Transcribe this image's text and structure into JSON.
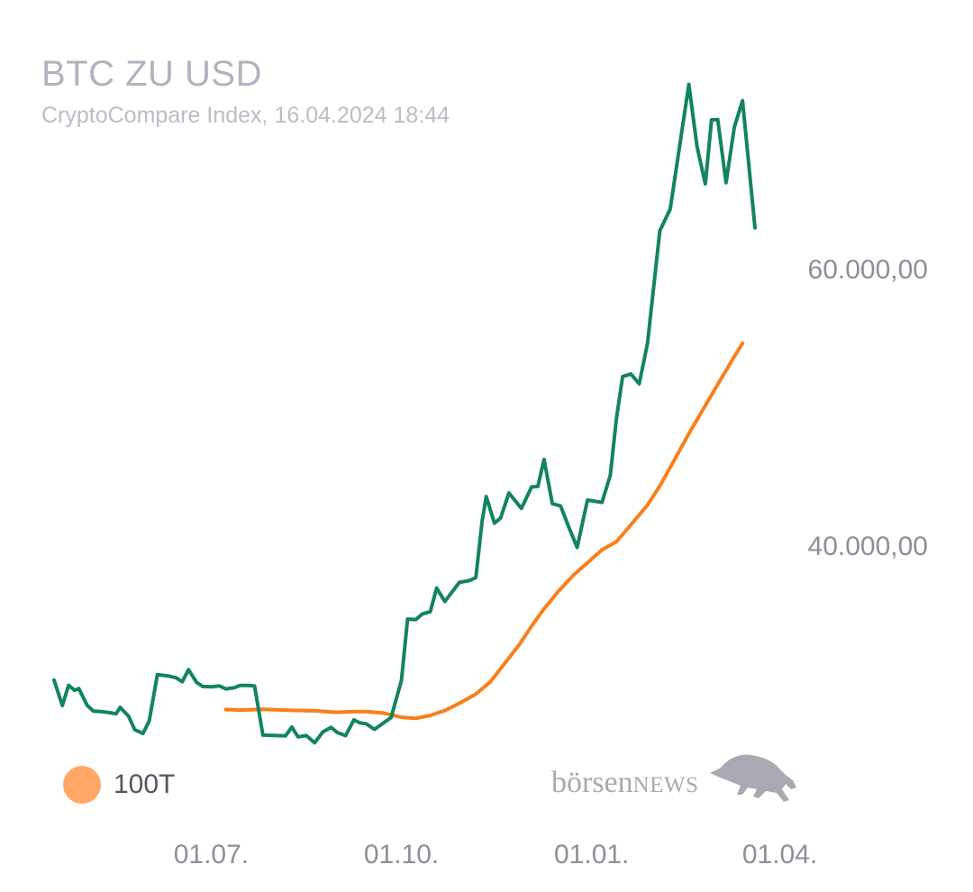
{
  "header": {
    "title": "BTC ZU USD",
    "subtitle": "CryptoCompare Index, 16.04.2024 18:44"
  },
  "legend": {
    "label": "100T",
    "color": "#ffa865"
  },
  "logo": {
    "text_main": "börsen",
    "text_news": "NEWS"
  },
  "colors": {
    "price": "#12845f",
    "ma": "#f77f1c"
  },
  "chart_data": {
    "type": "line",
    "title": "BTC ZU USD",
    "subtitle": "CryptoCompare Index, 16.04.2024 18:44",
    "y_ticks": [
      {
        "value": 40000,
        "label": "40.000,00"
      },
      {
        "value": 60000,
        "label": "60.000,00"
      }
    ],
    "x_ticks": [
      {
        "date": "2023-07-01",
        "label": "01.07."
      },
      {
        "date": "2023-10-01",
        "label": "01.10."
      },
      {
        "date": "2024-01-01",
        "label": "01.01."
      },
      {
        "date": "2024-04-01",
        "label": "01.04."
      }
    ],
    "grid": false,
    "legend_position": "bottom-left",
    "series": [
      {
        "id": "price",
        "data": [
          [
            "2023-04-16",
            30240
          ],
          [
            "2023-04-20",
            28400
          ],
          [
            "2023-04-23",
            29860
          ],
          [
            "2023-04-26",
            29500
          ],
          [
            "2023-04-28",
            29630
          ],
          [
            "2023-05-02",
            28420
          ],
          [
            "2023-05-05",
            28000
          ],
          [
            "2023-05-09",
            27960
          ],
          [
            "2023-05-13",
            27880
          ],
          [
            "2023-05-16",
            27800
          ],
          [
            "2023-05-18",
            28270
          ],
          [
            "2023-05-22",
            27640
          ],
          [
            "2023-05-25",
            26660
          ],
          [
            "2023-05-29",
            26380
          ],
          [
            "2023-06-01",
            27280
          ],
          [
            "2023-06-05",
            30640
          ],
          [
            "2023-06-10",
            30540
          ],
          [
            "2023-06-14",
            30410
          ],
          [
            "2023-06-17",
            30120
          ],
          [
            "2023-06-20",
            30990
          ],
          [
            "2023-06-24",
            30060
          ],
          [
            "2023-06-27",
            29780
          ],
          [
            "2023-07-01",
            29750
          ],
          [
            "2023-07-05",
            29820
          ],
          [
            "2023-07-08",
            29600
          ],
          [
            "2023-07-12",
            29680
          ],
          [
            "2023-07-15",
            29850
          ],
          [
            "2023-07-19",
            29850
          ],
          [
            "2023-07-22",
            29810
          ],
          [
            "2023-07-26",
            26260
          ],
          [
            "2023-08-02",
            26230
          ],
          [
            "2023-08-06",
            26210
          ],
          [
            "2023-08-09",
            26850
          ],
          [
            "2023-08-12",
            26140
          ],
          [
            "2023-08-16",
            26230
          ],
          [
            "2023-08-20",
            25710
          ],
          [
            "2023-08-24",
            26490
          ],
          [
            "2023-08-28",
            26820
          ],
          [
            "2023-08-31",
            26450
          ],
          [
            "2023-09-04",
            26220
          ],
          [
            "2023-09-08",
            27360
          ],
          [
            "2023-09-11",
            27140
          ],
          [
            "2023-09-14",
            27080
          ],
          [
            "2023-09-18",
            26680
          ],
          [
            "2023-09-26",
            27530
          ],
          [
            "2023-10-01",
            30220
          ],
          [
            "2023-10-04",
            34650
          ],
          [
            "2023-10-08",
            34620
          ],
          [
            "2023-10-11",
            35010
          ],
          [
            "2023-10-15",
            35190
          ],
          [
            "2023-10-18",
            36890
          ],
          [
            "2023-10-22",
            35920
          ],
          [
            "2023-10-29",
            37300
          ],
          [
            "2023-11-03",
            37440
          ],
          [
            "2023-11-06",
            37660
          ],
          [
            "2023-11-09",
            41720
          ],
          [
            "2023-11-11",
            43510
          ],
          [
            "2023-11-15",
            41580
          ],
          [
            "2023-11-18",
            41970
          ],
          [
            "2023-11-22",
            43770
          ],
          [
            "2023-11-28",
            42650
          ],
          [
            "2023-12-03",
            44210
          ],
          [
            "2023-12-06",
            44240
          ],
          [
            "2023-12-09",
            46190
          ],
          [
            "2023-12-13",
            42990
          ],
          [
            "2023-12-17",
            42830
          ],
          [
            "2023-12-21",
            41280
          ],
          [
            "2023-12-25",
            39830
          ],
          [
            "2023-12-30",
            43260
          ],
          [
            "2024-01-06",
            43090
          ],
          [
            "2024-01-10",
            45040
          ],
          [
            "2024-01-13",
            49140
          ],
          [
            "2024-01-16",
            52190
          ],
          [
            "2024-01-20",
            52370
          ],
          [
            "2024-01-24",
            51660
          ],
          [
            "2024-01-28",
            54580
          ],
          [
            "2024-02-03",
            62730
          ],
          [
            "2024-02-08",
            64290
          ],
          [
            "2024-02-17",
            73310
          ],
          [
            "2024-02-21",
            68810
          ],
          [
            "2024-02-25",
            66120
          ],
          [
            "2024-02-28",
            70750
          ],
          [
            "2024-03-02",
            70760
          ],
          [
            "2024-03-06",
            66210
          ],
          [
            "2024-03-10",
            70220
          ],
          [
            "2024-03-14",
            72140
          ],
          [
            "2024-03-20",
            62940
          ]
        ]
      },
      {
        "id": "ma100",
        "name": "100T",
        "data": [
          [
            "2023-07-08",
            28120
          ],
          [
            "2023-07-15",
            28070
          ],
          [
            "2023-07-26",
            28130
          ],
          [
            "2023-08-09",
            28050
          ],
          [
            "2023-08-20",
            28020
          ],
          [
            "2023-08-31",
            27910
          ],
          [
            "2023-09-08",
            27960
          ],
          [
            "2023-09-14",
            27970
          ],
          [
            "2023-09-22",
            27870
          ],
          [
            "2023-10-01",
            27550
          ],
          [
            "2023-10-08",
            27470
          ],
          [
            "2023-10-15",
            27690
          ],
          [
            "2023-10-22",
            28040
          ],
          [
            "2023-10-29",
            28560
          ],
          [
            "2023-11-06",
            29240
          ],
          [
            "2023-11-13",
            30110
          ],
          [
            "2023-11-20",
            31450
          ],
          [
            "2023-11-27",
            32810
          ],
          [
            "2023-12-03",
            34150
          ],
          [
            "2023-12-09",
            35400
          ],
          [
            "2023-12-16",
            36680
          ],
          [
            "2023-12-23",
            37800
          ],
          [
            "2023-12-30",
            38720
          ],
          [
            "2024-01-06",
            39670
          ],
          [
            "2024-01-13",
            40250
          ],
          [
            "2024-01-20",
            41470
          ],
          [
            "2024-01-28",
            42900
          ],
          [
            "2024-02-03",
            44280
          ],
          [
            "2024-02-10",
            46150
          ],
          [
            "2024-02-17",
            48060
          ],
          [
            "2024-02-24",
            49840
          ],
          [
            "2024-03-02",
            51620
          ],
          [
            "2024-03-09",
            53390
          ],
          [
            "2024-03-14",
            54600
          ]
        ]
      }
    ]
  }
}
